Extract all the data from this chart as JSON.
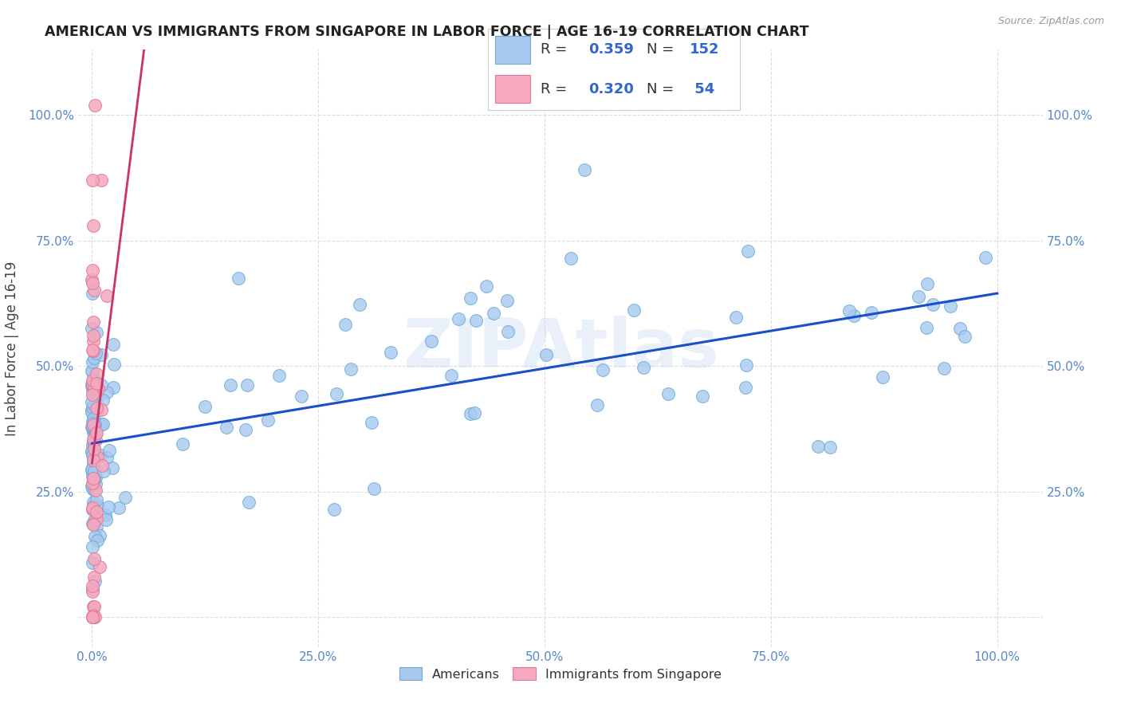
{
  "title": "AMERICAN VS IMMIGRANTS FROM SINGAPORE IN LABOR FORCE | AGE 16-19 CORRELATION CHART",
  "source": "Source: ZipAtlas.com",
  "ylabel": "In Labor Force | Age 16-19",
  "american_color": "#a8c8f0",
  "american_edge_color": "#6aaad4",
  "singapore_color": "#f5a8be",
  "singapore_edge_color": "#e07898",
  "blue_line_color": "#1a4fcc",
  "pink_line_color": "#cc3366",
  "pink_dash_color": "#e8a0b8",
  "R_american": 0.359,
  "N_american": 152,
  "R_singapore": 0.32,
  "N_singapore": 54,
  "legend_value_color": "#3366cc",
  "legend_label_color": "#333333",
  "watermark": "ZIPAtlas",
  "background_color": "#ffffff",
  "grid_color": "#dddddd",
  "tick_color": "#5588cc"
}
